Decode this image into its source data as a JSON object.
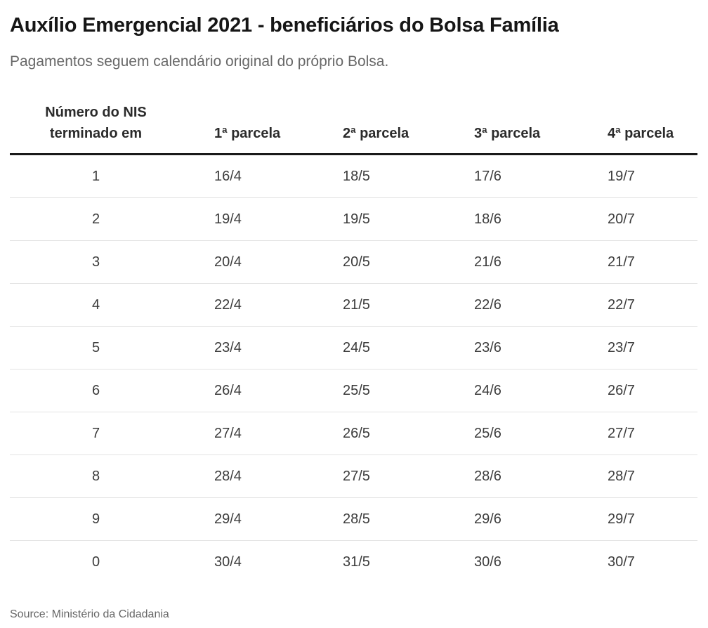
{
  "page": {
    "title": "Auxílio Emergencial 2021 - beneficiários do Bolsa Família",
    "subtitle": "Pagamentos seguem calendário original do próprio Bolsa.",
    "source": "Source: Ministério da Cidadania"
  },
  "colors": {
    "background": "#ffffff",
    "title_text": "#161616",
    "subtitle_text": "#686868",
    "header_text": "#2b2b2b",
    "cell_text": "#3c3c3c",
    "header_rule": "#1a1a1a",
    "row_divider": "#e3e3e3"
  },
  "chart_data": {
    "type": "table",
    "title": "Auxílio Emergencial 2021 - beneficiários do Bolsa Família",
    "subtitle": "Pagamentos seguem calendário original do próprio Bolsa.",
    "source": "Source: Ministério da Cidadania",
    "columns": [
      "Número do NIS terminado em",
      "1ª parcela",
      "2ª parcela",
      "3ª parcela",
      "4ª parcela"
    ],
    "nis_header_lines": [
      "Número do NIS",
      "terminado em"
    ],
    "rows": [
      [
        "1",
        "16/4",
        "18/5",
        "17/6",
        "19/7"
      ],
      [
        "2",
        "19/4",
        "19/5",
        "18/6",
        "20/7"
      ],
      [
        "3",
        "20/4",
        "20/5",
        "21/6",
        "21/7"
      ],
      [
        "4",
        "22/4",
        "21/5",
        "22/6",
        "22/7"
      ],
      [
        "5",
        "23/4",
        "24/5",
        "23/6",
        "23/7"
      ],
      [
        "6",
        "26/4",
        "25/5",
        "24/6",
        "26/7"
      ],
      [
        "7",
        "27/4",
        "26/5",
        "25/6",
        "27/7"
      ],
      [
        "8",
        "28/4",
        "27/5",
        "28/6",
        "28/7"
      ],
      [
        "9",
        "29/4",
        "28/5",
        "29/6",
        "29/7"
      ],
      [
        "0",
        "30/4",
        "31/5",
        "30/6",
        "30/7"
      ]
    ]
  }
}
